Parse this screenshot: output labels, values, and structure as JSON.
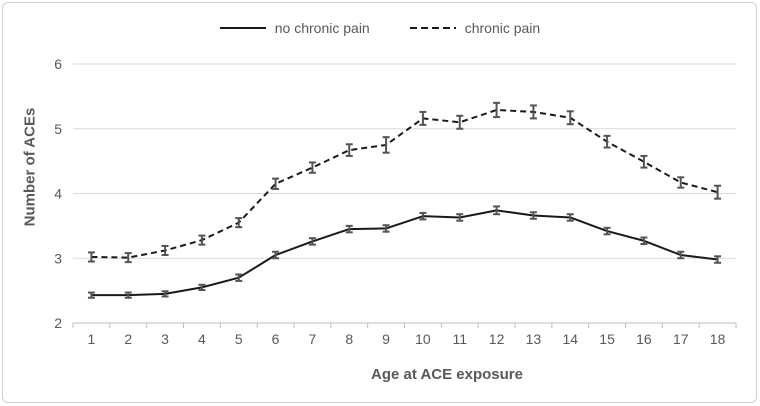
{
  "chart_data": {
    "type": "line",
    "title": "",
    "xlabel": "Age at ACE exposure",
    "ylabel": "Number of ACEs",
    "categories": [
      1,
      2,
      3,
      4,
      5,
      6,
      7,
      8,
      9,
      10,
      11,
      12,
      13,
      14,
      15,
      16,
      17,
      18
    ],
    "ylim": [
      2,
      6
    ],
    "yticks": [
      2,
      3,
      4,
      5,
      6
    ],
    "grid": "horizontal",
    "legend_position": "top-center",
    "error_bars": true,
    "series": [
      {
        "name": "no chronic pain",
        "line_style": "solid",
        "color": "#1a1a1a",
        "values": [
          2.43,
          2.43,
          2.45,
          2.55,
          2.7,
          3.05,
          3.26,
          3.45,
          3.46,
          3.65,
          3.63,
          3.74,
          3.66,
          3.63,
          3.42,
          3.27,
          3.05,
          2.98
        ],
        "errors": [
          0.04,
          0.04,
          0.04,
          0.04,
          0.05,
          0.05,
          0.05,
          0.05,
          0.05,
          0.05,
          0.05,
          0.06,
          0.05,
          0.05,
          0.05,
          0.05,
          0.05,
          0.05
        ]
      },
      {
        "name": "chronic pain",
        "line_style": "dashed",
        "color": "#1a1a1a",
        "values": [
          3.02,
          3.01,
          3.12,
          3.28,
          3.55,
          4.15,
          4.4,
          4.67,
          4.75,
          5.16,
          5.1,
          5.29,
          5.26,
          5.17,
          4.8,
          4.49,
          4.17,
          4.02
        ],
        "errors": [
          0.07,
          0.07,
          0.07,
          0.07,
          0.07,
          0.08,
          0.08,
          0.09,
          0.12,
          0.1,
          0.1,
          0.11,
          0.1,
          0.1,
          0.09,
          0.09,
          0.08,
          0.1
        ]
      }
    ]
  },
  "colors": {
    "text": "#595959",
    "gridline": "#d9d9d9",
    "axis": "#bfbfbf",
    "error_bar": "#545454",
    "border": "#d0d0d0",
    "background": "#ffffff"
  }
}
